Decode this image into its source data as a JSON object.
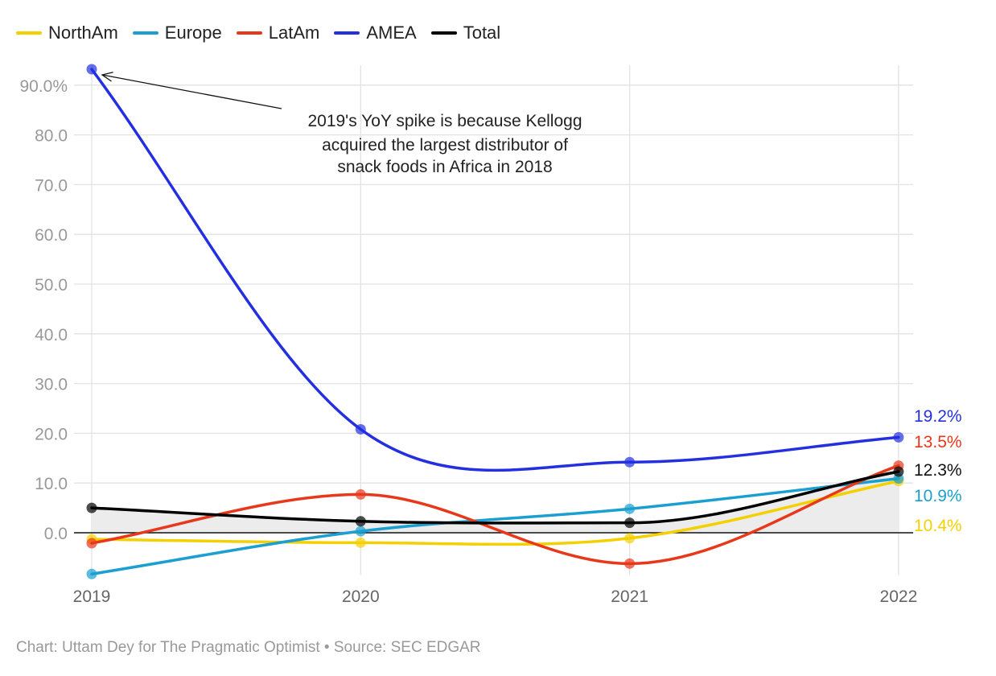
{
  "chart_data": {
    "type": "line",
    "x": [
      "2019",
      "2020",
      "2021",
      "2022"
    ],
    "y_ticks": [
      0,
      10,
      20,
      30,
      40,
      50,
      60,
      70,
      80,
      90
    ],
    "y_tick_labels": [
      "0.0",
      "10.0",
      "20.0",
      "30.0",
      "40.0",
      "50.0",
      "60.0",
      "70.0",
      "80.0",
      "90.0%"
    ],
    "ylim": [
      -8.5,
      94
    ],
    "grid": true,
    "legend_position": "top-left",
    "series": [
      {
        "name": "NorthAm",
        "color": "#f5d000",
        "values": [
          -1.3,
          -2.0,
          -1.1,
          10.4
        ],
        "end_label": "10.4%"
      },
      {
        "name": "Europe",
        "color": "#1a9fd0",
        "values": [
          -8.3,
          0.3,
          4.8,
          10.9
        ],
        "end_label": "10.9%"
      },
      {
        "name": "LatAm",
        "color": "#e8381b",
        "values": [
          -2.1,
          7.7,
          -6.2,
          13.5
        ],
        "end_label": "13.5%"
      },
      {
        "name": "AMEA",
        "color": "#2430e0",
        "values": [
          93.2,
          20.8,
          14.2,
          19.2
        ],
        "end_label": "19.2%"
      },
      {
        "name": "Total",
        "color": "#000000",
        "values": [
          5.0,
          2.3,
          2.0,
          12.3
        ],
        "end_label": "12.3%"
      }
    ],
    "annotation": {
      "lines": [
        "2019's YoY spike is because Kellogg",
        "acquired the largest distributor of",
        "snack foods in Africa in 2018"
      ],
      "target_series": "AMEA",
      "target_x": "2019"
    }
  },
  "footer": {
    "text": "Chart: Uttam Dey for The Pragmatic Optimist • Source: SEC EDGAR"
  }
}
